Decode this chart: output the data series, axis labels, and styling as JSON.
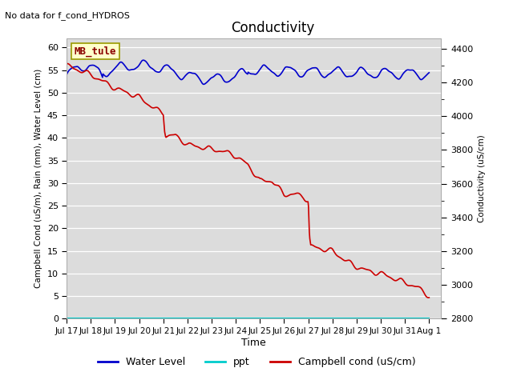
{
  "title": "Conductivity",
  "top_left_text": "No data for f_cond_HYDROS",
  "ylabel_left": "Campbell Cond (uS/m), Rain (mm), Water Level (cm)",
  "ylabel_right": "Conductivity (uS/cm)",
  "xlabel": "Time",
  "ylim_left": [
    0,
    62
  ],
  "ylim_right": [
    2800,
    4460
  ],
  "xlim_left": 0,
  "xlim_right": 15.5,
  "bg_color": "#dcdcdc",
  "annotation_box": "MB_tule",
  "annotation_box_color": "#ffffcc",
  "annotation_box_edge": "#999900",
  "x_tick_labels": [
    "Jul 17",
    "Jul 18",
    "Jul 19",
    "Jul 20",
    "Jul 21",
    "Jul 22",
    "Jul 23",
    "Jul 24",
    "Jul 25",
    "Jul 26",
    "Jul 27",
    "Jul 28",
    "Jul 29",
    "Jul 30",
    "Jul 31",
    "Aug 1"
  ],
  "yticks_left": [
    0,
    5,
    10,
    15,
    20,
    25,
    30,
    35,
    40,
    45,
    50,
    55,
    60
  ],
  "yticks_right": [
    2800,
    3000,
    3200,
    3400,
    3600,
    3800,
    4000,
    4200,
    4400
  ],
  "legend_entries": [
    "Water Level",
    "ppt",
    "Campbell cond (uS/cm)"
  ],
  "water_level_color": "#0000cc",
  "ppt_color": "#00cccc",
  "campbell_color": "#cc0000",
  "water_level_lw": 1.2,
  "ppt_lw": 1.5,
  "campbell_lw": 1.2
}
